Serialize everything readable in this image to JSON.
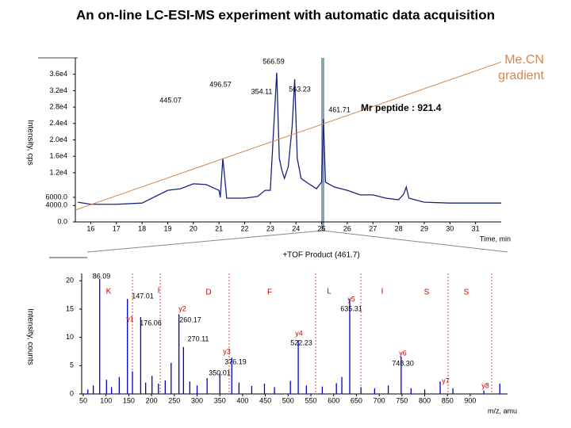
{
  "title": "An on-line LC-ESI-MS experiment with automatic data acquisition",
  "chart_data": [
    {
      "type": "line",
      "x_label": "Time, min",
      "y_label": "Intensity, cps",
      "xlim": [
        15.4,
        32
      ],
      "ylim": [
        0,
        40000
      ],
      "xticks": [
        16,
        17,
        18,
        19,
        20,
        21,
        22,
        23,
        24,
        25,
        26,
        27,
        28,
        29,
        30,
        31
      ],
      "yticks": [
        {
          "value": 0,
          "label": "0.0"
        },
        {
          "value": 4000,
          "label": "4000.0"
        },
        {
          "value": 6000,
          "label": "6000.0"
        },
        {
          "value": 12000,
          "label": "1.2e4"
        },
        {
          "value": 16000,
          "label": "1.6e4"
        },
        {
          "value": 20000,
          "label": "2.0e4"
        },
        {
          "value": 24000,
          "label": "2.4e4"
        },
        {
          "value": 28000,
          "label": "2.8e4"
        },
        {
          "value": 32000,
          "label": "3.2e4"
        },
        {
          "value": 36000,
          "label": "3.6e4"
        }
      ],
      "series": [
        {
          "color": "#1a237e",
          "x": [
            15.5,
            16,
            17,
            18,
            19,
            19.5,
            20,
            20.5,
            21,
            21.05,
            21.15,
            21.3,
            21.7,
            22,
            22.5,
            22.8,
            23.0,
            23.15,
            23.25,
            23.35,
            23.45,
            23.55,
            23.7,
            23.85,
            23.95,
            24.05,
            24.2,
            24.5,
            24.8,
            25.0,
            25.07,
            25.15,
            25.5,
            26,
            26.5,
            27,
            27.5,
            28,
            28.2,
            28.3,
            28.4,
            29,
            30,
            31,
            32
          ],
          "values": [
            4800,
            4300,
            4300,
            4600,
            7700,
            8100,
            9300,
            9100,
            7700,
            6000,
            15500,
            5800,
            5800,
            5800,
            6200,
            7700,
            7700,
            25000,
            36400,
            15500,
            12600,
            10600,
            13500,
            23200,
            34800,
            15500,
            10600,
            9300,
            8100,
            9700,
            25100,
            9700,
            8500,
            7700,
            6600,
            6600,
            5800,
            5400,
            6800,
            8500,
            5800,
            4800,
            4600,
            4600,
            4600
          ]
        },
        {
          "name": "Me.CN gradient",
          "color": "#d2874f",
          "x": [
            15.4,
            32
          ],
          "values": [
            2900,
            39000
          ]
        }
      ],
      "annotations": [
        "566.59",
        "496.57",
        "445.07",
        "354.11",
        "563.23",
        "461.71",
        "Mr peptide : 921.4"
      ]
    },
    {
      "type": "stem",
      "title": "+TOF Product (461.7)",
      "x_label": "m/z, amu",
      "y_label": "Intensity, counts",
      "xlim": [
        46.5,
        982
      ],
      "ylim": [
        0,
        21.3
      ],
      "xticks": [
        50,
        100,
        150,
        200,
        250,
        300,
        350,
        400,
        450,
        500,
        550,
        600,
        650,
        700,
        750,
        800,
        850,
        900
      ],
      "yticks": [
        0,
        5,
        10,
        15,
        20
      ],
      "series": [
        {
          "color": "#0000cc",
          "x": [
            60,
            72,
            86.09,
            101,
            112,
            129,
            147.01,
            158,
            176.06,
            187,
            201,
            215,
            230,
            243,
            260.17,
            270.11,
            284,
            300,
            322,
            350.01,
            376.19,
            392,
            420,
            448,
            470,
            505,
            522.23,
            540,
            575,
            606,
            618,
            635.31,
            660,
            690,
            720,
            748.3,
            770,
            800,
            834,
            862,
            930,
            965
          ],
          "values": [
            0.8,
            1.5,
            20.3,
            2.5,
            1.2,
            3.0,
            16.8,
            4.0,
            13.6,
            2.0,
            3.2,
            1.8,
            2.4,
            5.5,
            14.1,
            8.3,
            2.2,
            1.5,
            2.8,
            3.6,
            6.4,
            2.0,
            1.4,
            1.8,
            1.2,
            2.3,
            9.5,
            1.5,
            1.3,
            1.9,
            3.0,
            16.8,
            1.2,
            1.0,
            1.5,
            6.6,
            1.0,
            0.8,
            2.2,
            1.0,
            0.6,
            1.8
          ]
        }
      ],
      "annotations": [
        "86.09",
        "147.01",
        "176.06",
        "260.17",
        "270.11",
        "376.19",
        "350.01",
        "522.23",
        "635.31",
        "748.30",
        "y1",
        "y2",
        "y3",
        "y4",
        "y5",
        "y6",
        "y7",
        "y8",
        "K",
        "I",
        "D",
        "F",
        "L",
        "I",
        "S",
        "S"
      ]
    }
  ]
}
